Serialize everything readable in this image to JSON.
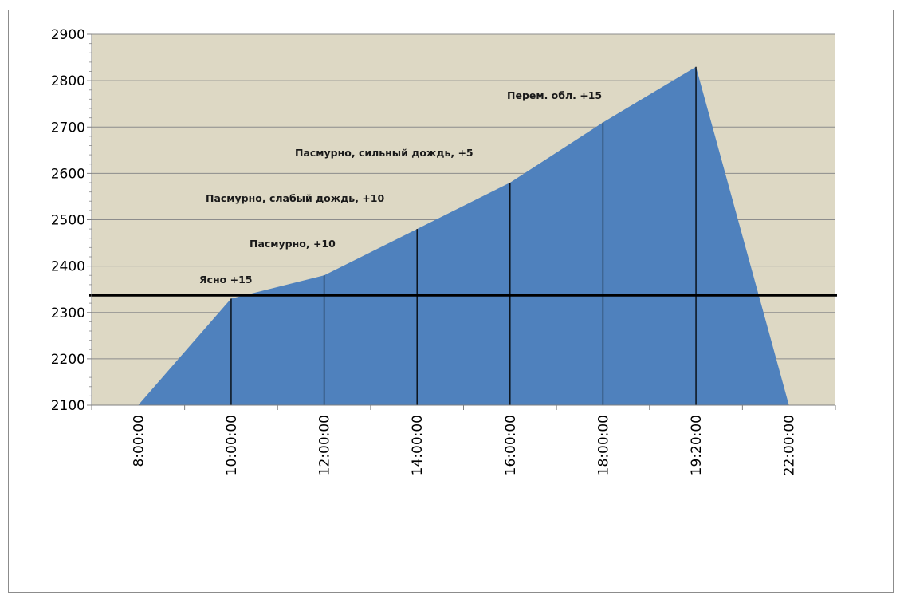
{
  "chart_data": {
    "type": "area",
    "title": "",
    "xlabel": "",
    "ylabel": "",
    "ylim": [
      2100,
      2900
    ],
    "yticks": [
      2100,
      2200,
      2300,
      2400,
      2500,
      2600,
      2700,
      2800,
      2900
    ],
    "x": [
      "8:00:00",
      "10:00:00",
      "12:00:00",
      "14:00:00",
      "16:00:00",
      "18:00:00",
      "19:20:00",
      "22:00:00"
    ],
    "series": [
      {
        "values": [
          2100,
          2330,
          2380,
          2480,
          2580,
          2710,
          2830,
          2100
        ]
      }
    ],
    "reference_line": {
      "y": 2337
    },
    "annotations": [
      {
        "text": "Ясно +15"
      },
      {
        "text": "Пасмурно, +10"
      },
      {
        "text": "Пасмурно, слабый дождь, +10"
      },
      {
        "text": "Пасмурно, сильный дождь, +5"
      },
      {
        "text": "Перем. обл. +15"
      }
    ],
    "grid": true,
    "legend": "none",
    "colors": {
      "plot_background": "#DDD8C4",
      "area": "#4F81BD",
      "gridline": "#8C8C8C",
      "reference_line": "#000000",
      "drop_line": "#000000"
    }
  }
}
